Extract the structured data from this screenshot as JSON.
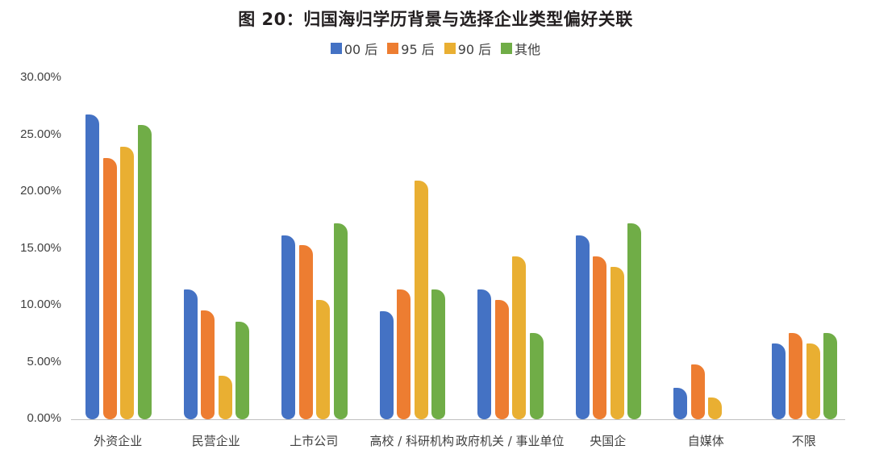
{
  "chart_data": {
    "type": "bar",
    "title": "图 20：归国海归学历背景与选择企业类型偏好关联",
    "xlabel": "",
    "ylabel": "",
    "ylim": [
      0,
      0.3
    ],
    "y_ticks": [
      "0.00%",
      "5.00%",
      "10.00%",
      "15.00%",
      "20.00%",
      "25.00%",
      "30.00%"
    ],
    "grid": false,
    "legend_position": "top",
    "categories": [
      "外资企业",
      "民营企业",
      "上市公司",
      "高校 / 科研机构",
      "政府机关 / 事业单位",
      "央国企",
      "自媒体",
      "不限"
    ],
    "series": [
      {
        "name": "00 后",
        "color": "#4472C4",
        "values": [
          26.8,
          11.4,
          16.2,
          9.5,
          11.4,
          16.2,
          2.8,
          6.7
        ]
      },
      {
        "name": "95 后",
        "color": "#ED7D31",
        "values": [
          23.0,
          9.6,
          15.3,
          11.4,
          10.5,
          14.3,
          4.8,
          7.6
        ]
      },
      {
        "name": "90 后",
        "color": "#E9AF32",
        "values": [
          24.0,
          3.8,
          10.5,
          21.0,
          14.3,
          13.4,
          1.9,
          6.7
        ]
      },
      {
        "name": "其他",
        "color": "#70AD47",
        "values": [
          25.9,
          8.6,
          17.2,
          11.4,
          7.6,
          17.2,
          0.0,
          7.6
        ]
      }
    ]
  }
}
